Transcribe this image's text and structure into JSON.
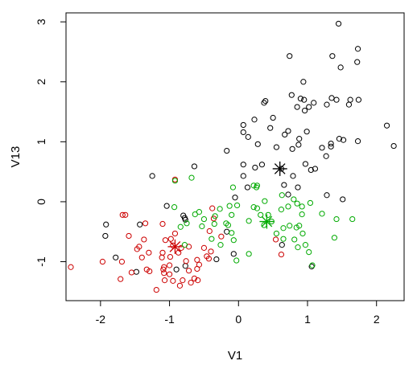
{
  "chart_data": {
    "type": "scatter",
    "title": "",
    "xlabel": "V1",
    "ylabel": "V13",
    "xlim": [
      -2.5,
      2.4
    ],
    "ylim": [
      -1.65,
      3.15
    ],
    "xticks": [
      -2,
      -1,
      0,
      1,
      2
    ],
    "yticks": [
      -1,
      0,
      1,
      2,
      3
    ],
    "grid": false,
    "colors": {
      "cluster1": "#000000",
      "cluster2": "#cc0000",
      "cluster3": "#00aa00"
    },
    "series": [
      {
        "color": "#000000",
        "marker": "open-circle",
        "points": [
          [
            1.45,
            2.97
          ],
          [
            1.73,
            2.55
          ],
          [
            1.36,
            2.43
          ],
          [
            1.72,
            2.33
          ],
          [
            1.48,
            2.24
          ],
          [
            0.74,
            2.43
          ],
          [
            0.94,
            2.0
          ],
          [
            0.77,
            1.78
          ],
          [
            0.9,
            1.72
          ],
          [
            0.95,
            1.7
          ],
          [
            1.09,
            1.65
          ],
          [
            1.28,
            1.62
          ],
          [
            1.35,
            1.73
          ],
          [
            1.42,
            1.7
          ],
          [
            1.62,
            1.7
          ],
          [
            1.74,
            1.7
          ],
          [
            0.85,
            1.58
          ],
          [
            0.96,
            1.52
          ],
          [
            1.02,
            1.58
          ],
          [
            1.6,
            1.62
          ],
          [
            0.39,
            1.68
          ],
          [
            0.37,
            1.65
          ],
          [
            0.07,
            1.28
          ],
          [
            0.07,
            1.16
          ],
          [
            0.23,
            1.37
          ],
          [
            0.5,
            1.4
          ],
          [
            0.14,
            1.08
          ],
          [
            0.28,
            0.96
          ],
          [
            0.46,
            1.23
          ],
          [
            0.72,
            1.18
          ],
          [
            0.88,
            1.05
          ],
          [
            0.99,
            1.17
          ],
          [
            0.67,
            1.12
          ],
          [
            0.87,
            0.95
          ],
          [
            0.78,
            0.88
          ],
          [
            1.21,
            0.9
          ],
          [
            1.34,
            0.97
          ],
          [
            1.46,
            1.05
          ],
          [
            1.52,
            1.03
          ],
          [
            1.73,
            1.01
          ],
          [
            2.15,
            1.27
          ],
          [
            2.25,
            0.93
          ],
          [
            -0.17,
            0.85
          ],
          [
            0.55,
            0.91
          ],
          [
            0.62,
            0.55
          ],
          [
            0.34,
            0.62
          ],
          [
            0.07,
            0.62
          ],
          [
            0.07,
            0.43
          ],
          [
            0.24,
            0.57
          ],
          [
            0.79,
            0.43
          ],
          [
            0.97,
            0.63
          ],
          [
            1.05,
            0.53
          ],
          [
            1.27,
            0.76
          ],
          [
            1.34,
            0.92
          ],
          [
            -0.64,
            0.59
          ],
          [
            -1.25,
            0.43
          ],
          [
            -0.05,
            0.07
          ],
          [
            0.13,
            0.24
          ],
          [
            0.66,
            0.28
          ],
          [
            0.72,
            0.12
          ],
          [
            0.86,
            0.24
          ],
          [
            1.11,
            0.55
          ],
          [
            1.28,
            0.11
          ],
          [
            1.51,
            0.04
          ],
          [
            -0.8,
            -0.23
          ],
          [
            -0.78,
            -0.27
          ],
          [
            -0.77,
            -0.3
          ],
          [
            -1.04,
            -0.07
          ],
          [
            -1.43,
            -0.38
          ],
          [
            -1.92,
            -0.38
          ],
          [
            -1.93,
            -0.57
          ],
          [
            -1.78,
            -0.93
          ],
          [
            -1.48,
            -1.17
          ],
          [
            -0.9,
            -1.13
          ],
          [
            -0.32,
            -0.96
          ],
          [
            -0.77,
            -1.07
          ],
          [
            1.06,
            -1.08
          ],
          [
            0.63,
            -0.72
          ],
          [
            -0.07,
            -0.87
          ],
          [
            -0.17,
            -0.5
          ]
        ]
      },
      {
        "color": "#cc0000",
        "marker": "open-circle",
        "points": [
          [
            -2.43,
            -1.09
          ],
          [
            -1.97,
            -1.0
          ],
          [
            -1.68,
            -0.22
          ],
          [
            -1.64,
            -0.22
          ],
          [
            -1.59,
            -0.57
          ],
          [
            -1.69,
            -1.0
          ],
          [
            -1.71,
            -1.29
          ],
          [
            -1.55,
            -1.18
          ],
          [
            -1.47,
            -0.79
          ],
          [
            -1.44,
            -0.75
          ],
          [
            -1.37,
            -0.63
          ],
          [
            -1.4,
            -0.93
          ],
          [
            -1.33,
            -1.13
          ],
          [
            -1.3,
            -0.85
          ],
          [
            -1.1,
            -0.37
          ],
          [
            -1.06,
            -0.64
          ],
          [
            -1.1,
            -0.85
          ],
          [
            -1.09,
            -1.13
          ],
          [
            -1.08,
            -1.19
          ],
          [
            -1.0,
            -1.06
          ],
          [
            -0.98,
            -0.62
          ],
          [
            -0.95,
            -0.73
          ],
          [
            -0.92,
            -0.53
          ],
          [
            -0.87,
            -0.85
          ],
          [
            -0.83,
            -0.77
          ],
          [
            -0.76,
            -0.99
          ],
          [
            -0.72,
            -1.15
          ],
          [
            -0.69,
            -1.35
          ],
          [
            -0.64,
            -1.28
          ],
          [
            -0.59,
            -1.31
          ],
          [
            -0.81,
            -1.31
          ],
          [
            -0.85,
            -1.4
          ],
          [
            -0.95,
            -1.32
          ],
          [
            -1.07,
            -1.31
          ],
          [
            -1.0,
            -1.21
          ],
          [
            -1.19,
            -1.47
          ],
          [
            -1.08,
            -1.09
          ],
          [
            -0.92,
            0.37
          ],
          [
            -0.6,
            -0.97
          ],
          [
            -0.5,
            -0.77
          ],
          [
            -0.42,
            -0.49
          ],
          [
            -0.38,
            -0.11
          ],
          [
            -0.4,
            -0.83
          ],
          [
            -0.46,
            -0.91
          ],
          [
            -0.25,
            -0.58
          ],
          [
            -0.36,
            -0.28
          ],
          [
            -0.43,
            -0.95
          ],
          [
            -0.57,
            -1.05
          ],
          [
            -0.6,
            -1.12
          ],
          [
            0.62,
            -0.88
          ],
          [
            0.54,
            -0.63
          ],
          [
            -1.29,
            -1.16
          ],
          [
            -1.11,
            -0.93
          ],
          [
            -0.72,
            -0.75
          ],
          [
            -0.99,
            -0.92
          ],
          [
            -1.35,
            -0.36
          ]
        ]
      },
      {
        "color": "#00aa00",
        "marker": "open-circle",
        "points": [
          [
            -0.92,
            0.35
          ],
          [
            -0.68,
            0.4
          ],
          [
            -0.57,
            -0.17
          ],
          [
            -0.5,
            -0.29
          ],
          [
            -0.34,
            -0.24
          ],
          [
            -0.27,
            -0.12
          ],
          [
            -0.13,
            -0.07
          ],
          [
            -0.08,
            0.24
          ],
          [
            -0.02,
            -0.06
          ],
          [
            -0.1,
            -0.22
          ],
          [
            -0.18,
            -0.36
          ],
          [
            -0.15,
            -0.39
          ],
          [
            -0.1,
            -0.52
          ],
          [
            -0.07,
            -0.64
          ],
          [
            0.15,
            -0.32
          ],
          [
            0.22,
            0.27
          ],
          [
            0.26,
            0.24
          ],
          [
            0.27,
            0.27
          ],
          [
            0.32,
            -0.22
          ],
          [
            0.37,
            -0.39
          ],
          [
            0.43,
            -0.22
          ],
          [
            0.48,
            -0.33
          ],
          [
            0.55,
            -0.53
          ],
          [
            0.65,
            -0.62
          ],
          [
            0.65,
            -0.44
          ],
          [
            0.74,
            -0.4
          ],
          [
            0.84,
            -0.43
          ],
          [
            0.81,
            -0.63
          ],
          [
            0.86,
            -0.76
          ],
          [
            1.02,
            -0.84
          ],
          [
            1.07,
            -1.06
          ],
          [
            0.97,
            -0.72
          ],
          [
            0.93,
            -0.53
          ],
          [
            0.88,
            -0.4
          ],
          [
            0.92,
            -0.21
          ],
          [
            0.85,
            -0.03
          ],
          [
            0.8,
            0.04
          ],
          [
            0.63,
            0.11
          ],
          [
            0.72,
            -0.08
          ],
          [
            0.92,
            -0.08
          ],
          [
            1.04,
            -0.02
          ],
          [
            0.62,
            -0.13
          ],
          [
            0.38,
            0.01
          ],
          [
            0.27,
            -0.11
          ],
          [
            0.22,
            -0.09
          ],
          [
            1.21,
            -0.2
          ],
          [
            1.42,
            -0.29
          ],
          [
            1.39,
            -0.6
          ],
          [
            1.65,
            -0.29
          ],
          [
            -0.26,
            -0.72
          ],
          [
            -0.39,
            -0.62
          ],
          [
            -0.35,
            -0.37
          ],
          [
            -0.03,
            -0.98
          ],
          [
            0.15,
            -0.87
          ],
          [
            -0.84,
            -0.42
          ],
          [
            -0.75,
            -0.36
          ],
          [
            -0.63,
            -0.21
          ],
          [
            -0.93,
            -0.09
          ],
          [
            -0.78,
            -0.72
          ],
          [
            -0.53,
            -0.41
          ]
        ]
      }
    ],
    "centroids": [
      {
        "color": "#000000",
        "x": 0.6,
        "y": 0.55
      },
      {
        "color": "#cc0000",
        "x": -0.92,
        "y": -0.75
      },
      {
        "color": "#00aa00",
        "x": 0.41,
        "y": -0.33
      }
    ]
  }
}
